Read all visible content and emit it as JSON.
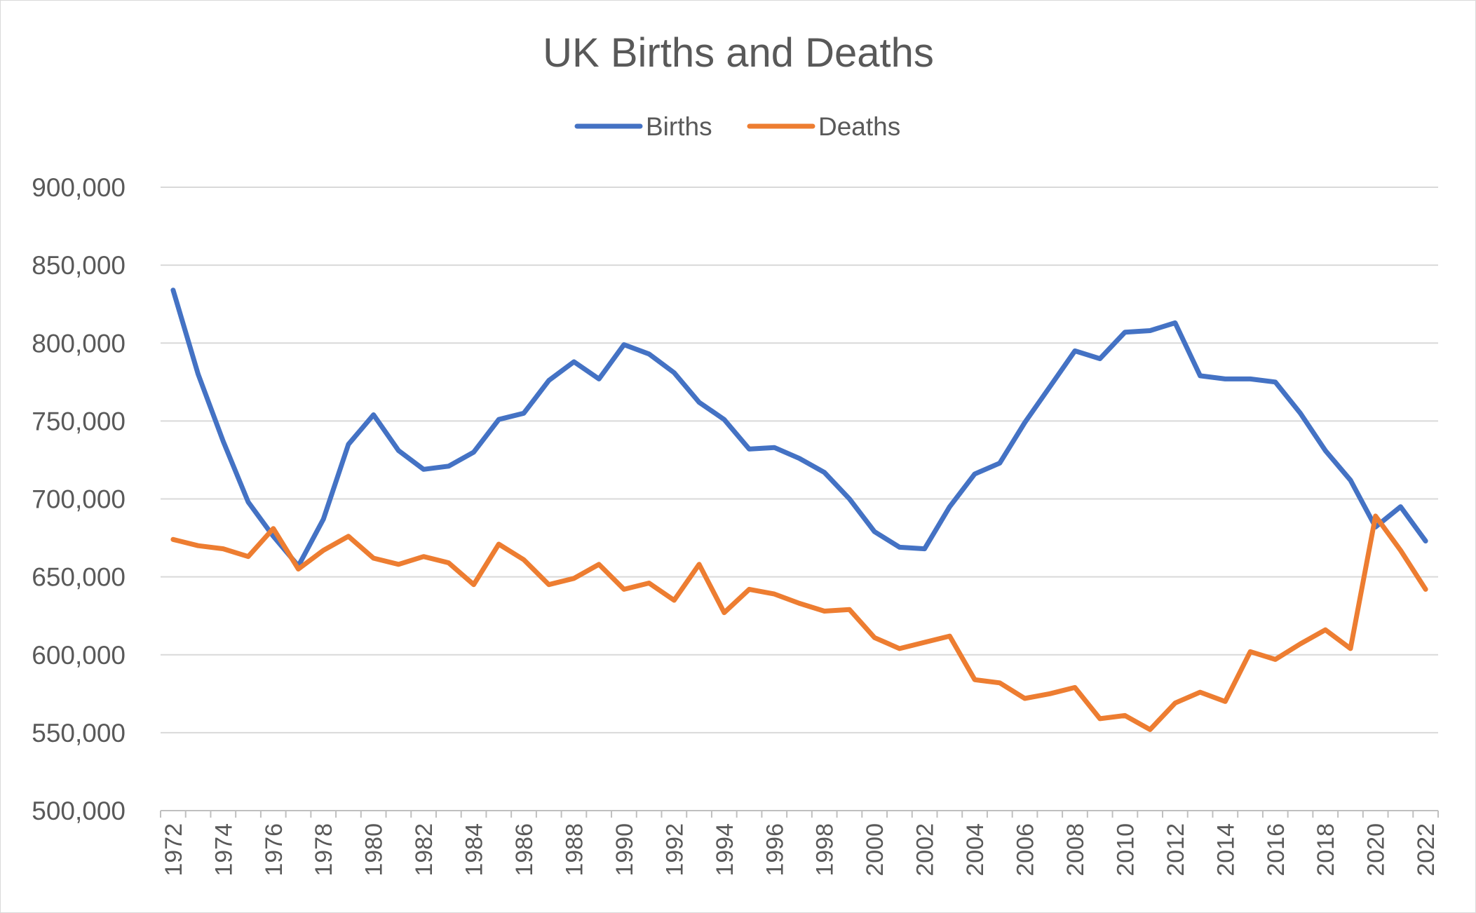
{
  "chart_data": {
    "type": "line",
    "title": "UK Births and Deaths",
    "xlabel": "",
    "ylabel": "",
    "ylim": [
      500000,
      900000
    ],
    "ytick_step": 50000,
    "ytick_labels": [
      "500,000",
      "550,000",
      "600,000",
      "650,000",
      "700,000",
      "750,000",
      "800,000",
      "850,000",
      "900,000"
    ],
    "grid": true,
    "legend_position": "top",
    "x": [
      1972,
      1973,
      1974,
      1975,
      1976,
      1977,
      1978,
      1979,
      1980,
      1981,
      1982,
      1983,
      1984,
      1985,
      1986,
      1987,
      1988,
      1989,
      1990,
      1991,
      1992,
      1993,
      1994,
      1995,
      1996,
      1997,
      1998,
      1999,
      2000,
      2001,
      2002,
      2003,
      2004,
      2005,
      2006,
      2007,
      2008,
      2009,
      2010,
      2011,
      2012,
      2013,
      2014,
      2015,
      2016,
      2017,
      2018,
      2019,
      2020,
      2021,
      2022
    ],
    "xtick_labels": [
      "1972",
      "1974",
      "1976",
      "1978",
      "1980",
      "1982",
      "1984",
      "1986",
      "1988",
      "1990",
      "1992",
      "1994",
      "1996",
      "1998",
      "2000",
      "2002",
      "2004",
      "2006",
      "2008",
      "2010",
      "2012",
      "2014",
      "2016",
      "2018",
      "2020",
      "2022"
    ],
    "series": [
      {
        "name": "Births",
        "color": "#4472C4",
        "values": [
          834000,
          780000,
          737000,
          698000,
          676000,
          657000,
          687000,
          735000,
          754000,
          731000,
          719000,
          721000,
          730000,
          751000,
          755000,
          776000,
          788000,
          777000,
          799000,
          793000,
          781000,
          762000,
          751000,
          732000,
          733000,
          726000,
          717000,
          700000,
          679000,
          669000,
          668000,
          695000,
          716000,
          723000,
          749000,
          772000,
          795000,
          790000,
          807000,
          808000,
          813000,
          779000,
          777000,
          777000,
          775000,
          755000,
          731000,
          712000,
          682000,
          695000,
          673000
        ]
      },
      {
        "name": "Deaths",
        "color": "#ED7D31",
        "values": [
          674000,
          670000,
          668000,
          663000,
          681000,
          655000,
          667000,
          676000,
          662000,
          658000,
          663000,
          659000,
          645000,
          671000,
          661000,
          645000,
          649000,
          658000,
          642000,
          646000,
          635000,
          658000,
          627000,
          642000,
          639000,
          633000,
          628000,
          629000,
          611000,
          604000,
          608000,
          612000,
          584000,
          582000,
          572000,
          575000,
          579000,
          559000,
          561000,
          552000,
          569000,
          576000,
          570000,
          602000,
          597000,
          607000,
          616000,
          604000,
          689000,
          667000,
          642000
        ]
      }
    ]
  }
}
